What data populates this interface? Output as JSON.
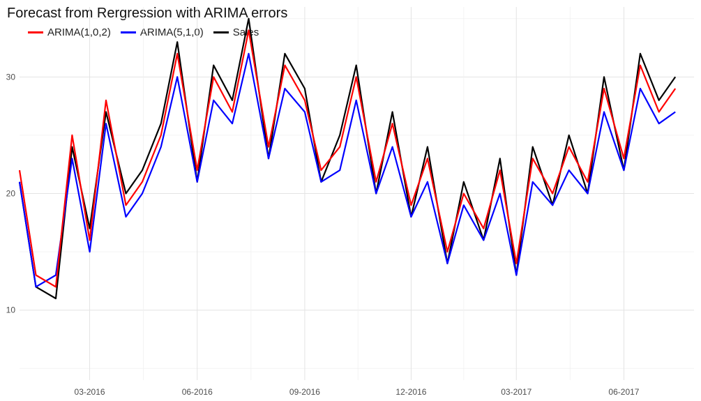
{
  "chart_data": {
    "type": "line",
    "title": "Forecast from Rergression with ARIMA errors",
    "xlabel": "",
    "ylabel": "",
    "x_range": [
      "2016-01-01",
      "2017-07-31"
    ],
    "ylim": [
      4,
      36
    ],
    "x_ticks": [
      {
        "date": "2016-03-01",
        "label": "03-2016"
      },
      {
        "date": "2016-06-01",
        "label": "06-2016"
      },
      {
        "date": "2016-09-01",
        "label": "09-2016"
      },
      {
        "date": "2016-12-01",
        "label": "12-2016"
      },
      {
        "date": "2017-03-01",
        "label": "03-2017"
      },
      {
        "date": "2017-06-01",
        "label": "06-2017"
      }
    ],
    "y_ticks": [
      10,
      20,
      30
    ],
    "grid": true,
    "legend_position": "top-left",
    "series": [
      {
        "name": "ARIMA(1,0,2)",
        "color": "#ff0000",
        "x": [
          "2016-01-01",
          "2016-01-15",
          "2016-02-01",
          "2016-02-15",
          "2016-03-01",
          "2016-03-15",
          "2016-04-01",
          "2016-04-15",
          "2016-05-01",
          "2016-05-15",
          "2016-06-01",
          "2016-06-15",
          "2016-07-01",
          "2016-07-15",
          "2016-08-01",
          "2016-08-15",
          "2016-09-01",
          "2016-09-15",
          "2016-10-01",
          "2016-10-15",
          "2016-11-01",
          "2016-11-15",
          "2016-12-01",
          "2016-12-15",
          "2017-01-01",
          "2017-01-15",
          "2017-02-01",
          "2017-02-15",
          "2017-03-01",
          "2017-03-15",
          "2017-04-01",
          "2017-04-15",
          "2017-05-01",
          "2017-05-15",
          "2017-06-01",
          "2017-06-15",
          "2017-07-01",
          "2017-07-15"
        ],
        "values": [
          22,
          13,
          12,
          25,
          16,
          28,
          19,
          21,
          25,
          32,
          22,
          30,
          27,
          34,
          24,
          31,
          28,
          22,
          24,
          30,
          21,
          26,
          19,
          23,
          15,
          20,
          17,
          22,
          14,
          23,
          20,
          24,
          21,
          29,
          23,
          31,
          27,
          29
        ]
      },
      {
        "name": "ARIMA(5,1,0)",
        "color": "#0000ff",
        "x": [
          "2016-01-01",
          "2016-01-15",
          "2016-02-01",
          "2016-02-15",
          "2016-03-01",
          "2016-03-15",
          "2016-04-01",
          "2016-04-15",
          "2016-05-01",
          "2016-05-15",
          "2016-06-01",
          "2016-06-15",
          "2016-07-01",
          "2016-07-15",
          "2016-08-01",
          "2016-08-15",
          "2016-09-01",
          "2016-09-15",
          "2016-10-01",
          "2016-10-15",
          "2016-11-01",
          "2016-11-15",
          "2016-12-01",
          "2016-12-15",
          "2017-01-01",
          "2017-01-15",
          "2017-02-01",
          "2017-02-15",
          "2017-03-01",
          "2017-03-15",
          "2017-04-01",
          "2017-04-15",
          "2017-05-01",
          "2017-05-15",
          "2017-06-01",
          "2017-06-15",
          "2017-07-01",
          "2017-07-15"
        ],
        "values": [
          21,
          12,
          13,
          23,
          15,
          26,
          18,
          20,
          24,
          30,
          21,
          28,
          26,
          32,
          23,
          29,
          27,
          21,
          22,
          28,
          20,
          24,
          18,
          21,
          14,
          19,
          16,
          20,
          13,
          21,
          19,
          22,
          20,
          27,
          22,
          29,
          26,
          27
        ]
      },
      {
        "name": "Sales",
        "color": "#000000",
        "x": [
          "2016-01-01",
          "2016-01-15",
          "2016-02-01",
          "2016-02-15",
          "2016-03-01",
          "2016-03-15",
          "2016-04-01",
          "2016-04-15",
          "2016-05-01",
          "2016-05-15",
          "2016-06-01",
          "2016-06-15",
          "2016-07-01",
          "2016-07-15",
          "2016-08-01",
          "2016-08-15",
          "2016-09-01",
          "2016-09-15",
          "2016-10-01",
          "2016-10-15",
          "2016-11-01",
          "2016-11-15",
          "2016-12-01",
          "2016-12-15",
          "2017-01-01",
          "2017-01-15",
          "2017-02-01",
          "2017-02-15",
          "2017-03-01",
          "2017-03-15",
          "2017-04-01",
          "2017-04-15",
          "2017-05-01",
          "2017-05-15",
          "2017-06-01",
          "2017-06-15",
          "2017-07-01",
          "2017-07-15"
        ],
        "values": [
          21,
          12,
          11,
          24,
          17,
          27,
          20,
          22,
          26,
          33,
          21,
          31,
          28,
          35,
          23,
          32,
          29,
          21,
          25,
          31,
          20,
          27,
          18,
          24,
          14,
          21,
          16,
          23,
          13,
          24,
          19,
          25,
          20,
          30,
          22,
          32,
          28,
          30
        ]
      }
    ]
  }
}
